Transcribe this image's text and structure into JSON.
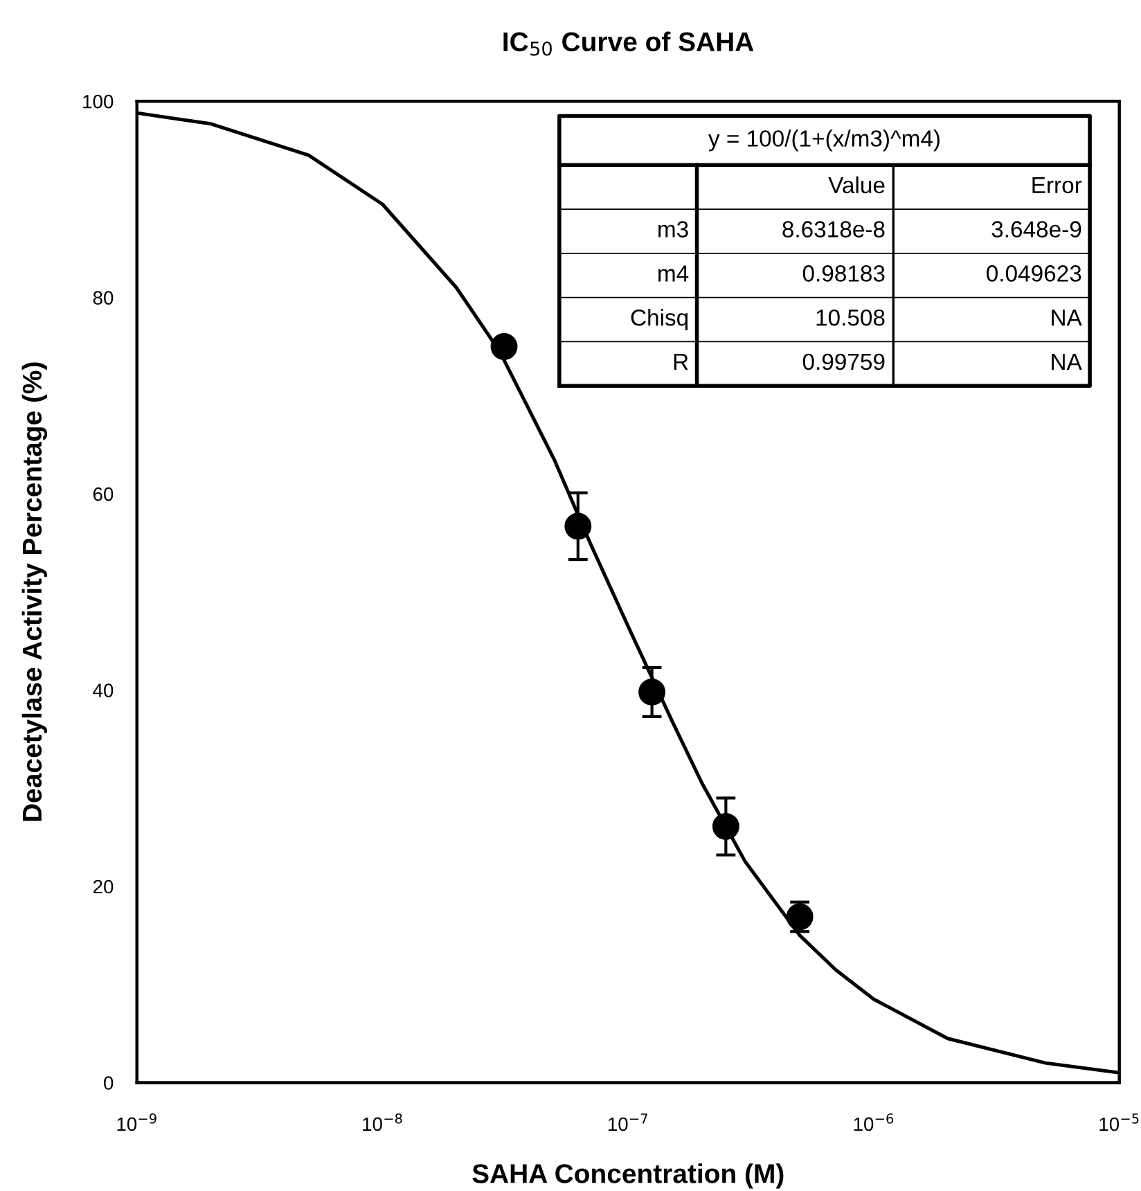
{
  "chart_data": {
    "type": "scatter",
    "title": "IC$_{50}$ Curve of SAHA",
    "xlabel": "SAHA Concentration (M)",
    "ylabel": "Deacetylase Activity Percentage (%)",
    "log": "x",
    "xlim": [
      1e-09,
      1e-05
    ],
    "ylim": [
      0,
      100
    ],
    "xticks": [
      {
        "value": 1e-09,
        "label": "10$^{−9}$"
      },
      {
        "value": 1e-08,
        "label": "10$^{−8}$"
      },
      {
        "value": 1e-07,
        "label": "10$^{−7}$"
      },
      {
        "value": 1e-06,
        "label": "10$^{−6}$"
      },
      {
        "value": 1e-05,
        "label": "10$^{−5}$"
      }
    ],
    "yticks": [
      0,
      20,
      40,
      60,
      80,
      100
    ],
    "grid": false,
    "marker": "circle",
    "series": [
      {
        "color": "#000000",
        "x": [
          3.125e-08,
          6.25e-08,
          1.25e-07,
          2.5e-07,
          5e-07
        ],
        "values": [
          75,
          56.7,
          39.8,
          26.1,
          16.9
        ],
        "errors": [
          null,
          3.4,
          2.5,
          2.9,
          1.5
        ]
      },
      {
        "type": "line",
        "color": "#000000",
        "marker": "none",
        "line_style": "solid",
        "x": [
          1e-09,
          2e-09,
          5e-09,
          1e-08,
          2e-08,
          3e-08,
          5e-08,
          7e-08,
          1e-07,
          1.5e-07,
          2e-07,
          3e-07,
          5e-07,
          7e-07,
          1e-06,
          2e-06,
          5e-06,
          1e-05
        ],
        "values": [
          98.8,
          97.7,
          94.5,
          89.5,
          81,
          74.5,
          63.5,
          55,
          46.5,
          37,
          30.5,
          22.5,
          15,
          11.5,
          8.5,
          4.5,
          2,
          1
        ]
      }
    ],
    "annotations": [
      "y = 100/(1+(x/m3)^m4)",
      "Value",
      "Error",
      "m3",
      "8.6318e-8",
      "3.648e-9",
      "m4",
      "0.98183",
      "0.049623",
      "Chisq",
      "10.508",
      "NA",
      "R",
      "0.99759",
      "NA"
    ]
  }
}
